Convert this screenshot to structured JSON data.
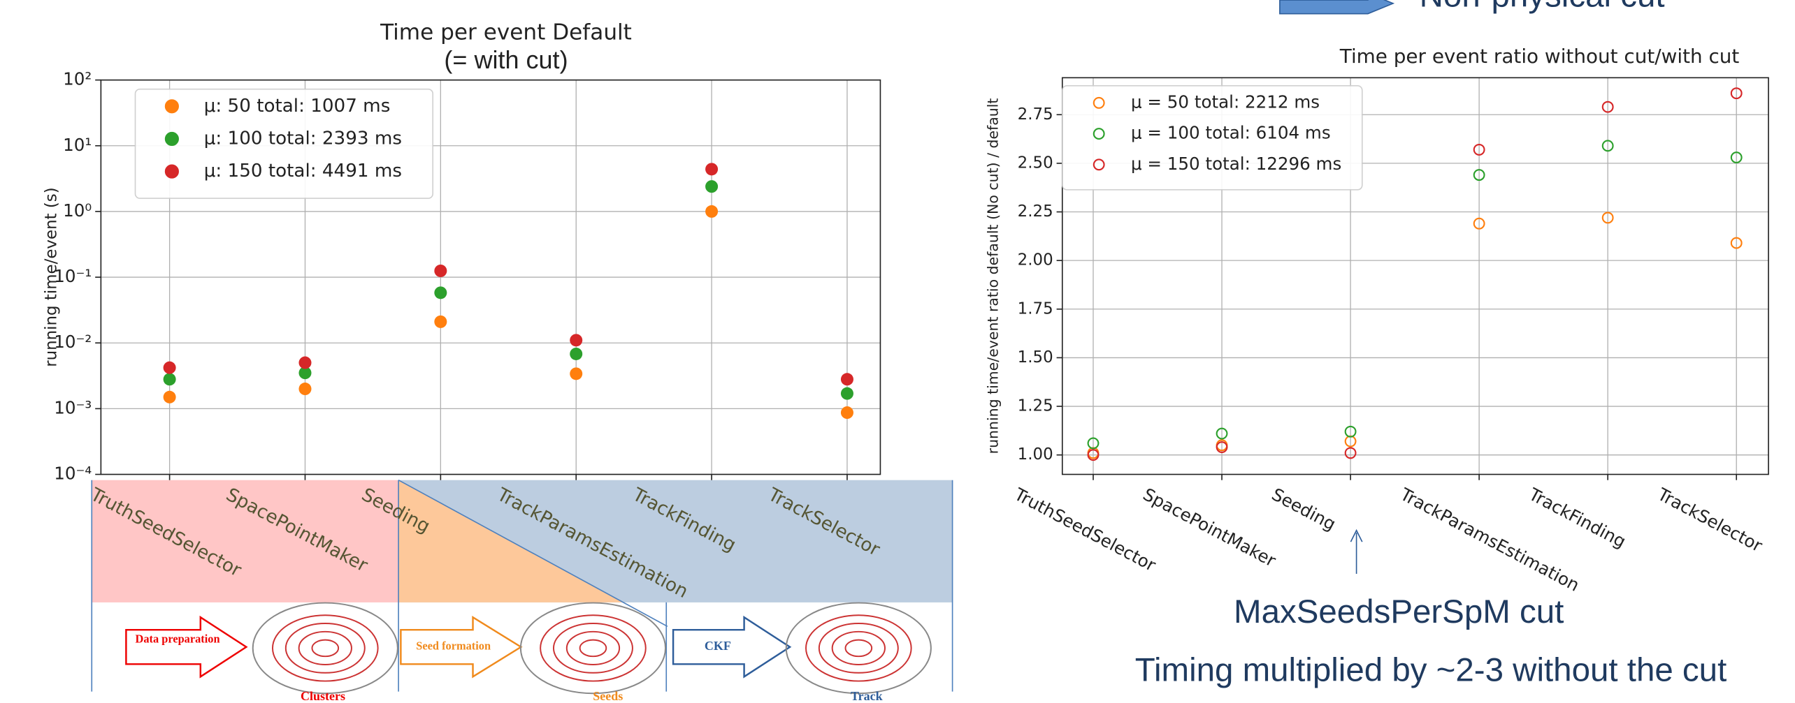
{
  "chart_data": [
    {
      "type": "scatter",
      "title": "Time per event Default",
      "subtitle": "(= with cut)",
      "y_label": "running time/event (s)",
      "log_y": true,
      "grid": true,
      "legend": "upper left",
      "marker": "filled",
      "categories": [
        "TruthSeedSelector",
        "SpacePointMaker",
        "Seeding",
        "TrackParamsEstimation",
        "TrackFinding",
        "TrackSelector"
      ],
      "ylim": [
        0.0001,
        100
      ],
      "yticks": [
        {
          "value": 0.0001,
          "label": "10⁻⁴"
        },
        {
          "value": 0.001,
          "label": "10⁻³"
        },
        {
          "value": 0.01,
          "label": "10⁻²"
        },
        {
          "value": 0.1,
          "label": "10⁻¹"
        },
        {
          "value": 1,
          "label": "10⁰"
        },
        {
          "value": 10,
          "label": "10¹"
        },
        {
          "value": 100,
          "label": "10²"
        }
      ],
      "series": [
        {
          "name": "μ: 50 total: 1007 ms",
          "color": "#ff7f0e",
          "values": [
            0.0015,
            0.002,
            0.021,
            0.0034,
            1.0,
            0.00087
          ]
        },
        {
          "name": "μ: 100 total: 2393 ms",
          "color": "#2ca02c",
          "values": [
            0.0028,
            0.0035,
            0.058,
            0.0068,
            2.4,
            0.0017
          ]
        },
        {
          "name": "μ: 150 total: 4491 ms",
          "color": "#d62728",
          "values": [
            0.0042,
            0.005,
            0.125,
            0.011,
            4.4,
            0.0028
          ]
        }
      ]
    },
    {
      "type": "scatter",
      "title": "Time per event ratio without cut/with cut",
      "y_label": "running time/event ratio default (No cut) / default",
      "log_y": false,
      "grid": true,
      "legend": "upper left",
      "marker": "hollow",
      "categories": [
        "TruthSeedSelector",
        "SpacePointMaker",
        "Seeding",
        "TrackParamsEstimation",
        "TrackFinding",
        "TrackSelector"
      ],
      "ylim": [
        0.9,
        2.94
      ],
      "yticks": [
        {
          "value": 1,
          "label": "1.00"
        },
        1.25,
        {
          "value": 1.5,
          "label": "1.50"
        },
        1.75,
        {
          "value": 2,
          "label": "2.00"
        },
        2.25,
        {
          "value": 2.5,
          "label": "2.50"
        },
        2.75
      ],
      "series": [
        {
          "name": "μ = 50 total: 2212 ms",
          "color": "#ff7f0e",
          "values": [
            1.01,
            1.05,
            1.07,
            2.19,
            2.22,
            2.09
          ]
        },
        {
          "name": "μ = 100 total: 6104 ms",
          "color": "#2ca02c",
          "values": [
            1.06,
            1.11,
            1.12,
            2.44,
            2.59,
            2.53
          ]
        },
        {
          "name": "μ = 150 total: 12296 ms",
          "color": "#d62728",
          "values": [
            1.0,
            1.04,
            1.01,
            2.57,
            2.79,
            2.86
          ]
        }
      ],
      "annotations": [
        "Non-physical cut",
        "MaxSeedsPerSpM cut",
        "Timing multiplied by ~2-3 without the cut"
      ]
    }
  ],
  "diagram": {
    "steps": [
      "Data preparation",
      "Seed formation",
      "CKF"
    ],
    "outputs": [
      "Clusters",
      "Seeds",
      "Track"
    ]
  }
}
